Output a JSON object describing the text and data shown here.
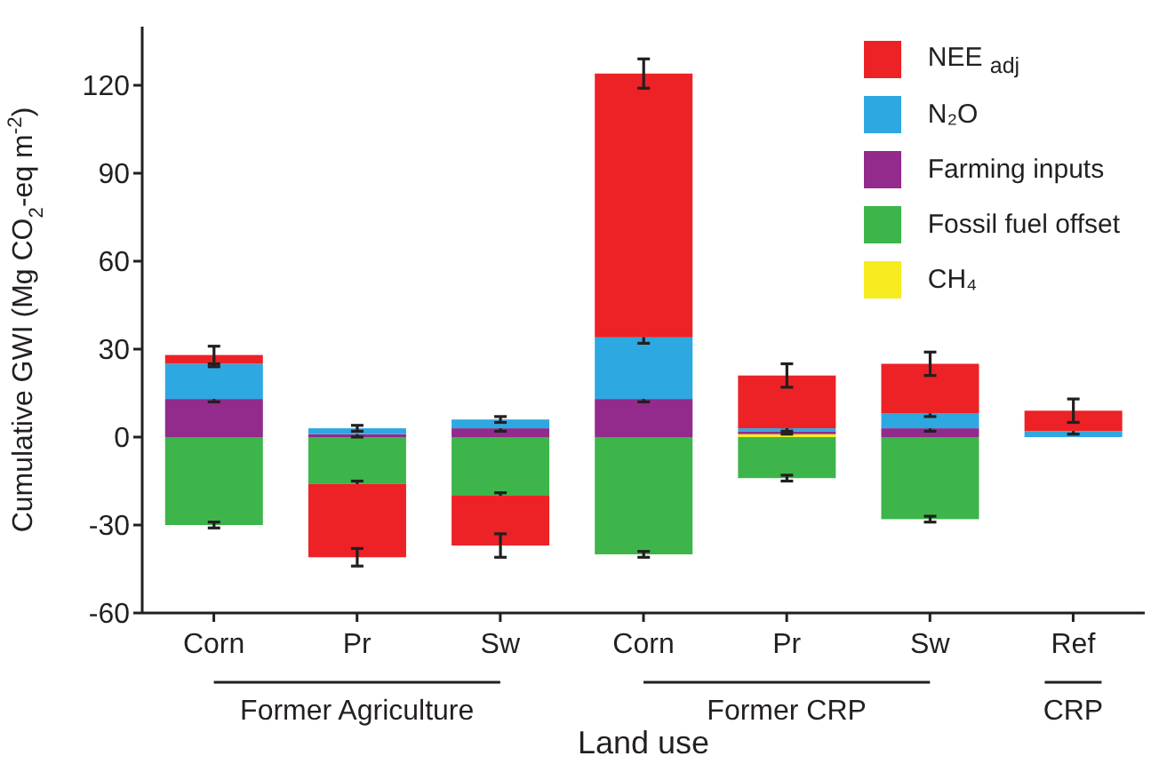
{
  "chart_data": {
    "type": "bar",
    "stacked": true,
    "ylabel": "Cumulative GWI (Mg CO$_{2}$-eq m$^{-2}$)",
    "xlabel": "Land use",
    "categories": [
      "Corn",
      "Pr",
      "Sw",
      "Corn",
      "Pr",
      "Sw",
      "Ref"
    ],
    "annotations": [
      "Former Agriculture",
      "Former CRP",
      "CRP"
    ],
    "series": [
      {
        "name": "CH₄",
        "color": "#f7ec1f",
        "values": [
          null,
          null,
          null,
          null,
          1,
          null,
          null
        ]
      },
      {
        "name": "Fossil fuel offset",
        "color": "#3db54a",
        "values": [
          -30,
          -16,
          -20,
          -40,
          -14,
          -28,
          null
        ],
        "errors": [
          1,
          1,
          1,
          1,
          1,
          1,
          null
        ]
      },
      {
        "name": "Farming inputs",
        "color": "#922b8c",
        "values": [
          13,
          1,
          3,
          13,
          1,
          3,
          null
        ],
        "errors": [
          1,
          1,
          1,
          1,
          1,
          1,
          null
        ]
      },
      {
        "name": "N₂O",
        "color": "#2ea8e0",
        "values": [
          12,
          2,
          3,
          21,
          1,
          5,
          2
        ],
        "errors": [
          1,
          1,
          1,
          2,
          1,
          1,
          1
        ]
      },
      {
        "name": "NEE $_{adj}$",
        "color": "#ec2227",
        "values": [
          3,
          -25,
          -17,
          90,
          18,
          17,
          7
        ],
        "errors": [
          3,
          3,
          4,
          5,
          4,
          4,
          4
        ]
      }
    ],
    "ylim": [
      -60,
      140
    ],
    "yticks": [
      -60,
      -30,
      0,
      30,
      60,
      90,
      120
    ],
    "legend": "top right"
  }
}
